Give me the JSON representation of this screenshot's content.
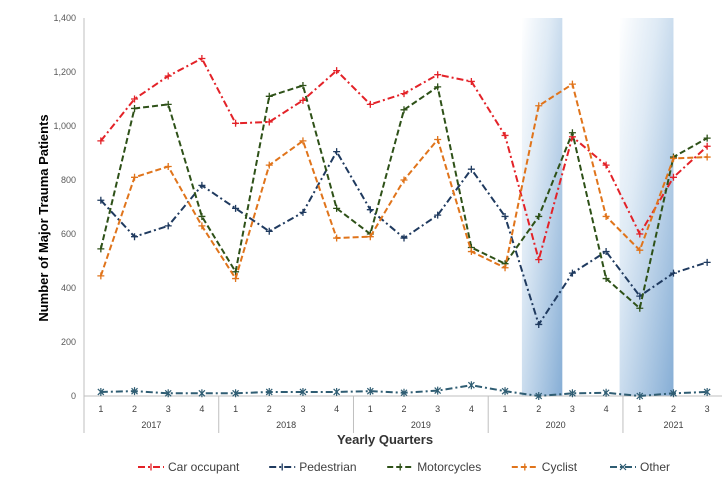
{
  "chart_data": {
    "type": "line",
    "xlabel": "Yearly Quarters",
    "ylabel": "Number of Major Trauma Patients",
    "ylim": [
      0,
      1400
    ],
    "yticks": [
      "0",
      "200",
      "400",
      "600",
      "800",
      "1,000",
      "1,200",
      "1,400"
    ],
    "quarters": [
      "1",
      "2",
      "3",
      "4",
      "1",
      "2",
      "3",
      "4",
      "1",
      "2",
      "3",
      "4",
      "1",
      "2",
      "3",
      "4",
      "1",
      "2",
      "3"
    ],
    "years": [
      {
        "label": "2017",
        "start": 0,
        "end": 3
      },
      {
        "label": "2018",
        "start": 4,
        "end": 7
      },
      {
        "label": "2019",
        "start": 8,
        "end": 11
      },
      {
        "label": "2020",
        "start": 12,
        "end": 15
      },
      {
        "label": "2021",
        "start": 16,
        "end": 18
      }
    ],
    "highlights": [
      {
        "start": 12.5,
        "end": 13.7
      },
      {
        "start": 15.4,
        "end": 17.0
      }
    ],
    "grid": false,
    "legend_position": "bottom",
    "series": [
      {
        "name": "Car occupant",
        "color": "#e32228",
        "dash": "dashdot",
        "marker": "plus",
        "values": [
          945,
          1100,
          1185,
          1250,
          1010,
          1015,
          1095,
          1205,
          1080,
          1120,
          1190,
          1165,
          965,
          505,
          960,
          855,
          600,
          810,
          925
        ]
      },
      {
        "name": "Pedestrian",
        "color": "#1f3a5f",
        "dash": "dashdot",
        "marker": "plus",
        "values": [
          725,
          590,
          630,
          780,
          695,
          610,
          680,
          905,
          690,
          585,
          670,
          840,
          665,
          265,
          455,
          535,
          370,
          455,
          495
        ]
      },
      {
        "name": "Motorcycles",
        "color": "#2e5118",
        "dash": "dash",
        "marker": "plus",
        "values": [
          545,
          1065,
          1080,
          665,
          460,
          1110,
          1150,
          695,
          600,
          1060,
          1145,
          550,
          490,
          665,
          975,
          435,
          325,
          885,
          955
        ]
      },
      {
        "name": "Cyclist",
        "color": "#e0741b",
        "dash": "dash",
        "marker": "plus",
        "values": [
          445,
          810,
          850,
          630,
          435,
          855,
          945,
          585,
          590,
          800,
          950,
          535,
          475,
          1075,
          1155,
          665,
          540,
          880,
          885
        ]
      },
      {
        "name": "Other",
        "color": "#2f5d73",
        "dash": "dashdot",
        "marker": "star",
        "values": [
          15,
          18,
          10,
          10,
          10,
          15,
          15,
          15,
          18,
          12,
          20,
          40,
          18,
          0,
          10,
          12,
          0,
          10,
          15
        ]
      }
    ]
  }
}
